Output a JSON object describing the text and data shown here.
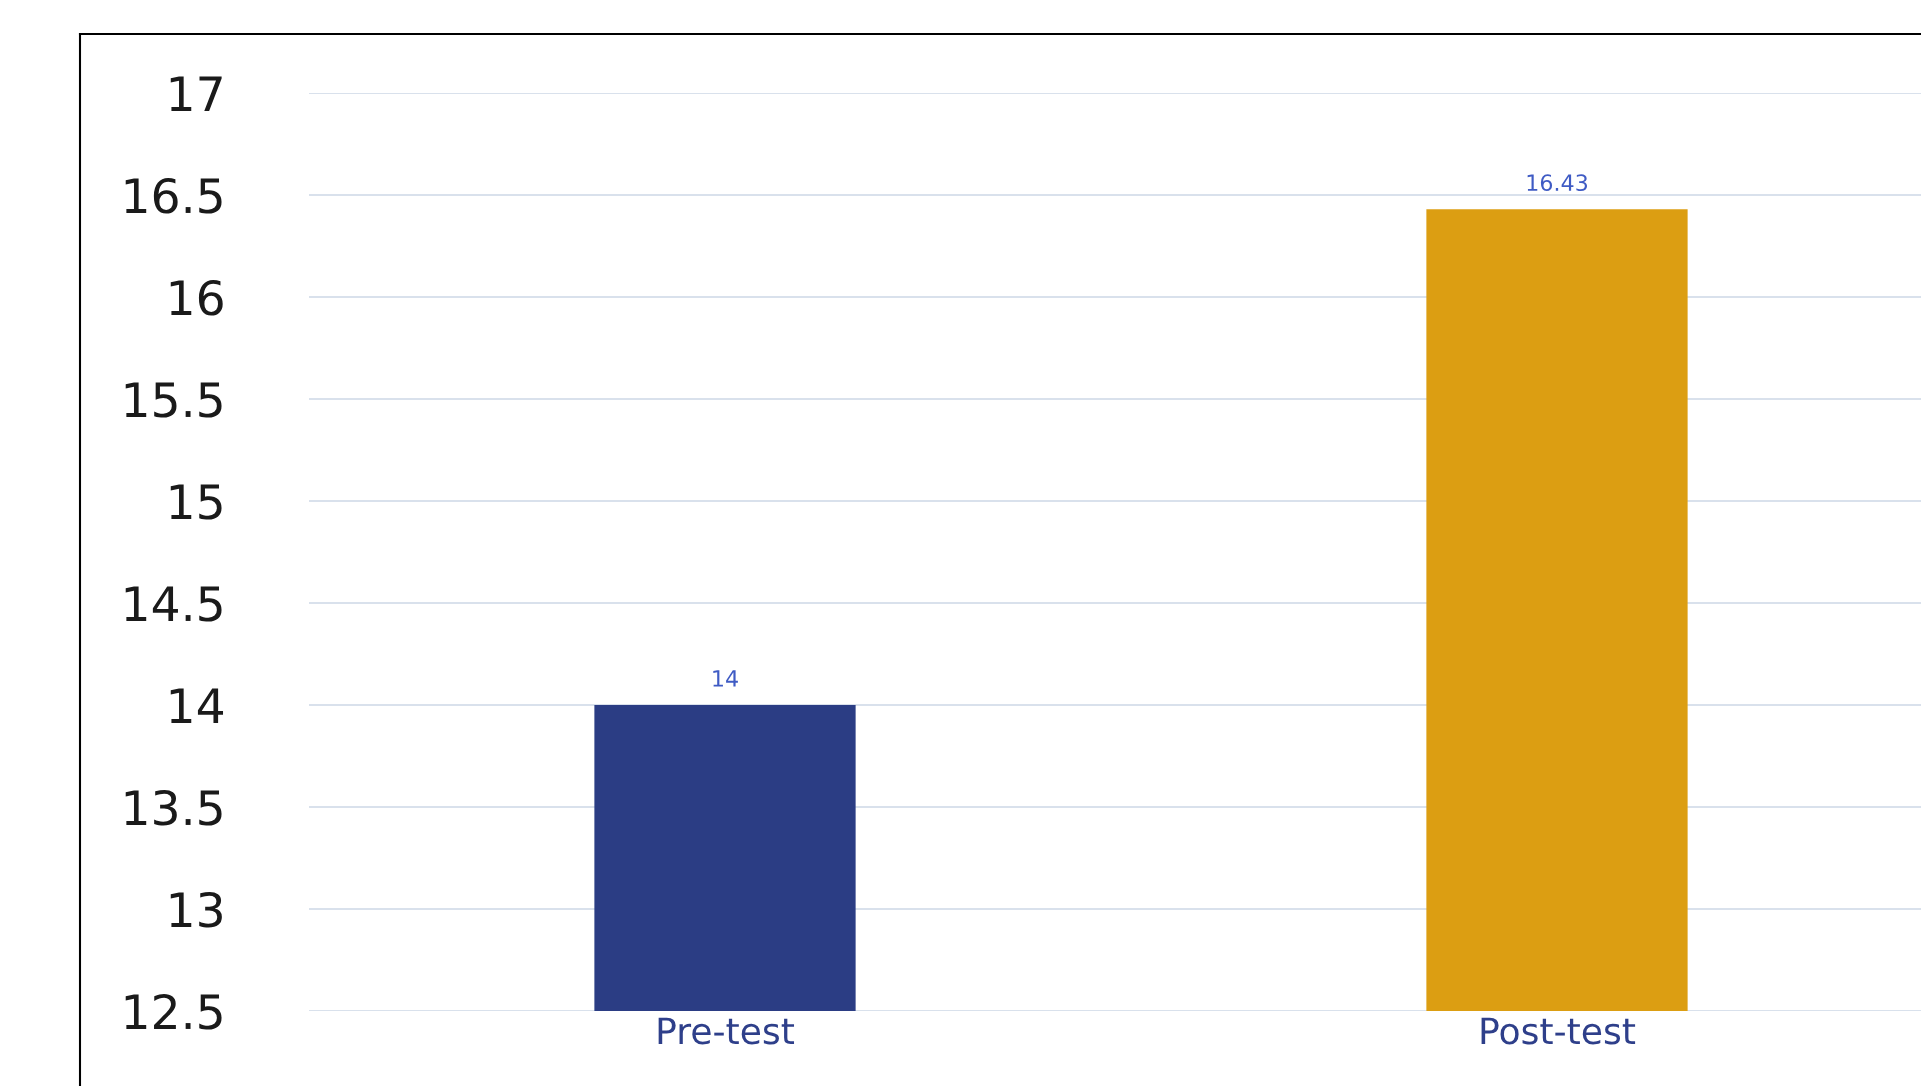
{
  "chart_data": {
    "type": "bar",
    "categories": [
      "Pre-test",
      "Post-test"
    ],
    "values": [
      14,
      16.43
    ],
    "colors": [
      "#2b3d84",
      "#dc9e12"
    ],
    "ylim": [
      12.5,
      17
    ],
    "yticks": [
      12.5,
      13,
      13.5,
      14,
      14.5,
      15,
      15.5,
      16,
      16.5,
      17
    ],
    "grid": "y",
    "data_labels": true
  }
}
